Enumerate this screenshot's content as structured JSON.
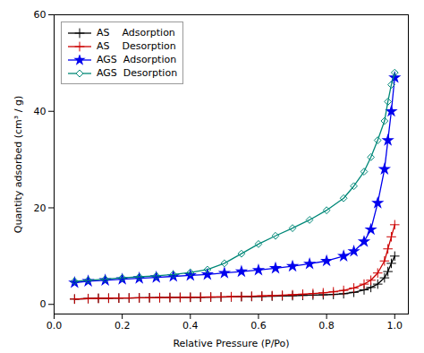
{
  "chart_data": {
    "type": "line",
    "title": "",
    "xlabel": "Relative Pressure (P/Po)",
    "ylabel": "Quantity adsorbed (cm³ / g)",
    "xlim": [
      0.0,
      1.04
    ],
    "ylim": [
      -2,
      60
    ],
    "xticks": [
      {
        "value": 0,
        "label": "0.0"
      },
      0.2,
      0.4,
      0.6,
      0.8,
      {
        "value": 1,
        "label": "1.0"
      }
    ],
    "yticks": [
      0,
      20,
      40,
      60
    ],
    "grid": false,
    "legend": "upper left",
    "series": [
      {
        "name": "AS    Adsorption",
        "color": "#000000",
        "marker": "plus",
        "x": [
          0.06,
          0.1,
          0.13,
          0.16,
          0.19,
          0.22,
          0.25,
          0.28,
          0.31,
          0.34,
          0.37,
          0.4,
          0.43,
          0.46,
          0.49,
          0.52,
          0.55,
          0.58,
          0.61,
          0.64,
          0.67,
          0.7,
          0.73,
          0.76,
          0.79,
          0.82,
          0.85,
          0.88,
          0.91,
          0.93,
          0.95,
          0.97,
          0.98,
          0.99,
          1.0
        ],
        "values": [
          1.1,
          1.2,
          1.25,
          1.28,
          1.3,
          1.33,
          1.35,
          1.37,
          1.4,
          1.42,
          1.44,
          1.46,
          1.48,
          1.5,
          1.52,
          1.55,
          1.58,
          1.62,
          1.66,
          1.7,
          1.75,
          1.8,
          1.86,
          1.92,
          1.98,
          2.05,
          2.2,
          2.5,
          3.0,
          3.5,
          4.2,
          5.5,
          6.8,
          8.5,
          10.0
        ]
      },
      {
        "name": "AS    Desorption",
        "color": "#cc0000",
        "marker": "plus",
        "x": [
          0.06,
          0.1,
          0.13,
          0.16,
          0.19,
          0.22,
          0.25,
          0.28,
          0.31,
          0.34,
          0.37,
          0.4,
          0.43,
          0.46,
          0.49,
          0.52,
          0.55,
          0.58,
          0.61,
          0.64,
          0.67,
          0.7,
          0.73,
          0.76,
          0.79,
          0.82,
          0.85,
          0.88,
          0.91,
          0.93,
          0.95,
          0.97,
          0.98,
          0.99,
          1.0
        ],
        "values": [
          1.1,
          1.2,
          1.25,
          1.28,
          1.3,
          1.33,
          1.35,
          1.37,
          1.4,
          1.42,
          1.44,
          1.47,
          1.5,
          1.53,
          1.56,
          1.6,
          1.65,
          1.7,
          1.76,
          1.82,
          1.9,
          2.0,
          2.12,
          2.25,
          2.4,
          2.6,
          2.9,
          3.4,
          4.2,
          5.0,
          6.5,
          9.0,
          11.5,
          14.0,
          16.5
        ]
      },
      {
        "name": "AGS  Adsorption",
        "color": "#0000ee",
        "marker": "star",
        "x": [
          0.06,
          0.1,
          0.15,
          0.2,
          0.25,
          0.3,
          0.35,
          0.4,
          0.45,
          0.5,
          0.55,
          0.6,
          0.65,
          0.7,
          0.75,
          0.8,
          0.85,
          0.88,
          0.91,
          0.93,
          0.95,
          0.97,
          0.98,
          0.99,
          1.0
        ],
        "values": [
          4.5,
          4.8,
          5.0,
          5.2,
          5.4,
          5.6,
          5.8,
          6.0,
          6.2,
          6.5,
          6.8,
          7.1,
          7.5,
          7.9,
          8.4,
          9.0,
          10.0,
          11.0,
          13.0,
          15.5,
          21.0,
          28.0,
          34.0,
          40.0,
          47.0
        ]
      },
      {
        "name": "AGS  Desorption",
        "color": "#008878",
        "marker": "open_diamond",
        "x": [
          0.06,
          0.1,
          0.15,
          0.2,
          0.25,
          0.3,
          0.35,
          0.4,
          0.45,
          0.5,
          0.55,
          0.6,
          0.65,
          0.7,
          0.75,
          0.8,
          0.85,
          0.88,
          0.91,
          0.93,
          0.95,
          0.97,
          0.98,
          0.99,
          1.0
        ],
        "values": [
          4.8,
          5.0,
          5.2,
          5.5,
          5.7,
          5.9,
          6.2,
          6.6,
          7.2,
          8.5,
          10.5,
          12.5,
          14.2,
          15.8,
          17.5,
          19.5,
          22.0,
          24.5,
          27.5,
          30.5,
          34.0,
          38.0,
          42.0,
          45.5,
          48.0
        ]
      }
    ]
  }
}
